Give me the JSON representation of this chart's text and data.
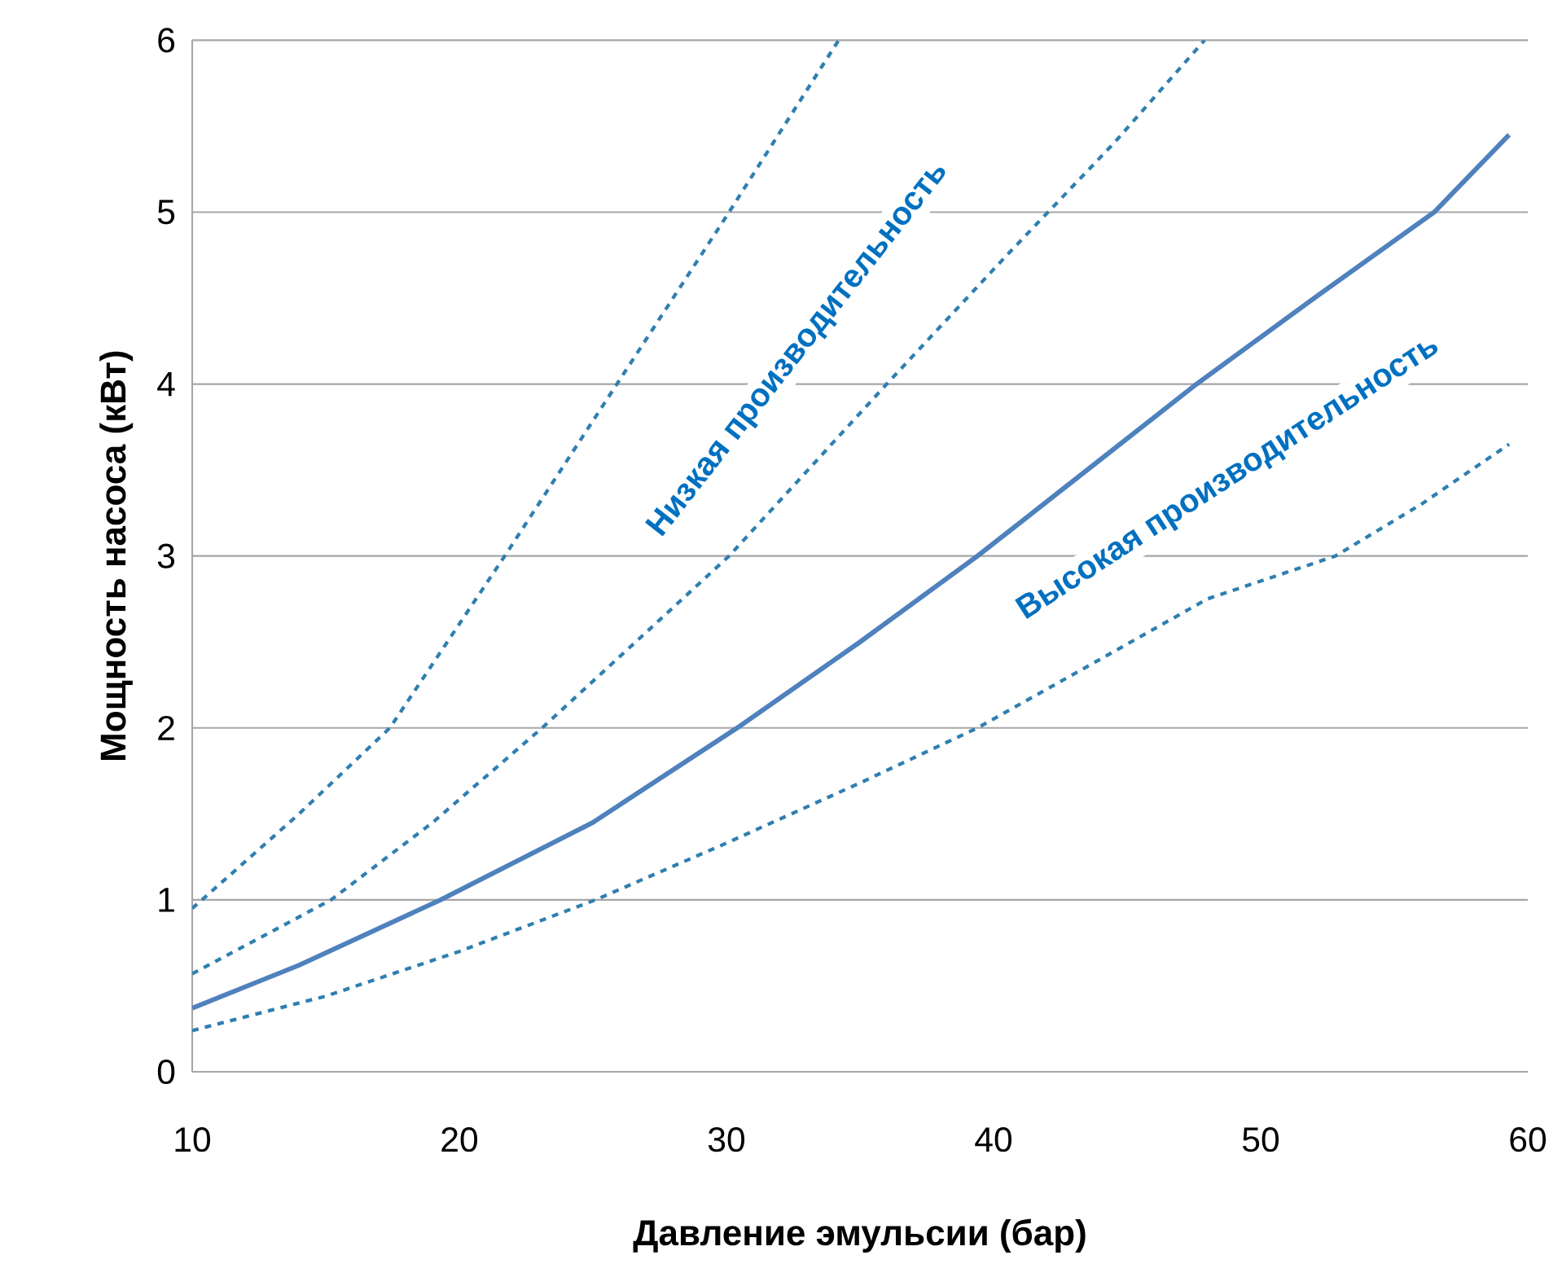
{
  "chart_data": {
    "type": "line",
    "xlabel": "Давление эмульсии (бар)",
    "ylabel": "Мощность насоса (кВт)",
    "xlim": [
      10,
      60
    ],
    "ylim": [
      0,
      6
    ],
    "xticks": [
      10,
      20,
      30,
      40,
      50,
      60
    ],
    "yticks": [
      0,
      1,
      2,
      3,
      4,
      5,
      6
    ],
    "grid": "y",
    "annotations": [
      "Низкая производительность",
      "Высокая производительность"
    ],
    "series": [
      {
        "color": "#2f7fb0",
        "line_style": "dashed",
        "x": [
          10,
          14,
          17.4,
          21.7,
          25.9,
          30.1,
          34.2
        ],
        "values": [
          0.95,
          1.5,
          2,
          3,
          4,
          5,
          6
        ]
      },
      {
        "color": "#2f7fb0",
        "line_style": "dashed",
        "x": [
          10,
          15.2,
          19,
          23.1,
          30.1,
          36,
          40.5,
          44.5,
          47.9
        ],
        "values": [
          0.57,
          1,
          1.45,
          2,
          3,
          4,
          4.75,
          5.4,
          6
        ]
      },
      {
        "color": "#4f81bd",
        "line_style": "solid",
        "x": [
          10,
          14,
          19.3,
          25,
          30.4,
          35,
          39.4,
          43.5,
          47.6,
          52,
          56.5,
          59.3
        ],
        "values": [
          0.37,
          0.62,
          1,
          1.45,
          2,
          2.5,
          3,
          3.5,
          4,
          4.5,
          5,
          5.45
        ]
      },
      {
        "color": "#2f7fb0",
        "line_style": "dashed",
        "x": [
          10,
          15,
          20,
          25.1,
          30,
          35,
          39.4,
          44,
          48,
          52.8,
          56,
          59.3
        ],
        "values": [
          0.24,
          0.44,
          0.7,
          1,
          1.33,
          1.68,
          2,
          2.4,
          2.75,
          3,
          3.3,
          3.65
        ]
      }
    ]
  }
}
